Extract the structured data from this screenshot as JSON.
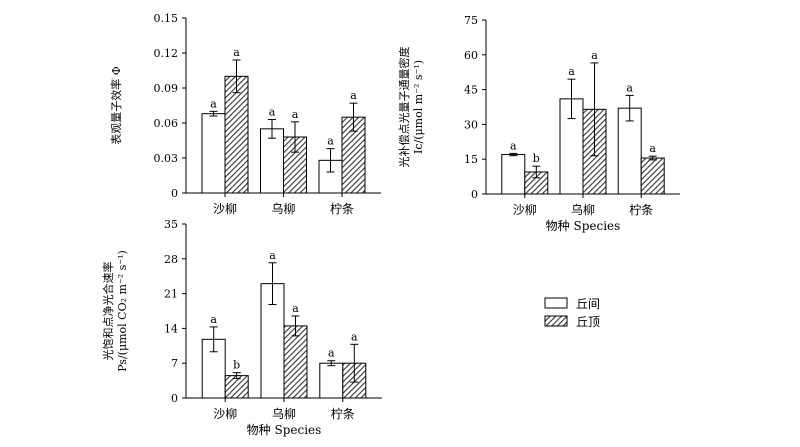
{
  "chart_data": [
    {
      "type": "bar",
      "categories": [
        "沙柳",
        "乌柳",
        "柠条"
      ],
      "series": [
        {
          "name": "丘间",
          "values": [
            0.068,
            0.055,
            0.028
          ],
          "errors": [
            0.002,
            0.008,
            0.01
          ],
          "letters": [
            "a",
            "a",
            "a"
          ]
        },
        {
          "name": "丘顶",
          "values": [
            0.1,
            0.048,
            0.065
          ],
          "errors": [
            0.014,
            0.013,
            0.012
          ],
          "letters": [
            "a",
            "a",
            "a"
          ]
        }
      ],
      "ylabel": "表观量子效率 Φ",
      "ylabel_lines": [
        "表观量子效率 Φ"
      ],
      "xlabel": "",
      "ylim": [
        0,
        0.15
      ],
      "yticks": [
        "0",
        "0.03",
        "0.06",
        "0.09",
        "0.12",
        "0.15"
      ]
    },
    {
      "type": "bar",
      "categories": [
        "沙柳",
        "乌柳",
        "柠条"
      ],
      "series": [
        {
          "name": "丘间",
          "values": [
            17,
            41,
            37
          ],
          "errors": [
            0.5,
            8.5,
            5.5
          ],
          "letters": [
            "a",
            "a",
            "a"
          ]
        },
        {
          "name": "丘顶",
          "values": [
            9.5,
            36.5,
            15.5
          ],
          "errors": [
            2.5,
            20,
            0.8
          ],
          "letters": [
            "b",
            "a",
            "a"
          ]
        }
      ],
      "ylabel": "光补偿点光量子通量密度 Ic/(μmol m⁻² s⁻¹)",
      "ylabel_lines": [
        "光补偿点光量子通量密度",
        "Ic/(μmol m⁻² s⁻¹)"
      ],
      "xlabel": "物种 Species",
      "ylim": [
        0,
        75
      ],
      "yticks": [
        "0",
        "15",
        "30",
        "45",
        "60",
        "75"
      ]
    },
    {
      "type": "bar",
      "categories": [
        "沙柳",
        "乌柳",
        "柠条"
      ],
      "series": [
        {
          "name": "丘间",
          "values": [
            11.8,
            23,
            7
          ],
          "errors": [
            2.5,
            4.2,
            0.5
          ],
          "letters": [
            "a",
            "a",
            "a"
          ]
        },
        {
          "name": "丘顶",
          "values": [
            4.5,
            14.5,
            7
          ],
          "errors": [
            0.6,
            2.0,
            3.8
          ],
          "letters": [
            "b",
            "a",
            "a"
          ]
        }
      ],
      "ylabel": "光饱和点净光合速率 Ps/(μmol CO₂ m⁻² s⁻¹)",
      "ylabel_lines": [
        "光饱和点净光合速率",
        "Ps/(μmol CO₂ m⁻² s⁻¹)"
      ],
      "xlabel": "物种 Species",
      "ylim": [
        0,
        35
      ],
      "yticks": [
        "0",
        "7",
        "14",
        "21",
        "28",
        "35"
      ]
    }
  ],
  "legend": {
    "position": "right",
    "items": [
      {
        "label": "丘间",
        "pattern": "open"
      },
      {
        "label": "丘顶",
        "pattern": "hatched"
      }
    ]
  },
  "colors": {
    "bar_open": "#ffffff",
    "bar_hatch_bg": "#ffffff",
    "hatch": "#333333",
    "stroke": "#000000"
  }
}
